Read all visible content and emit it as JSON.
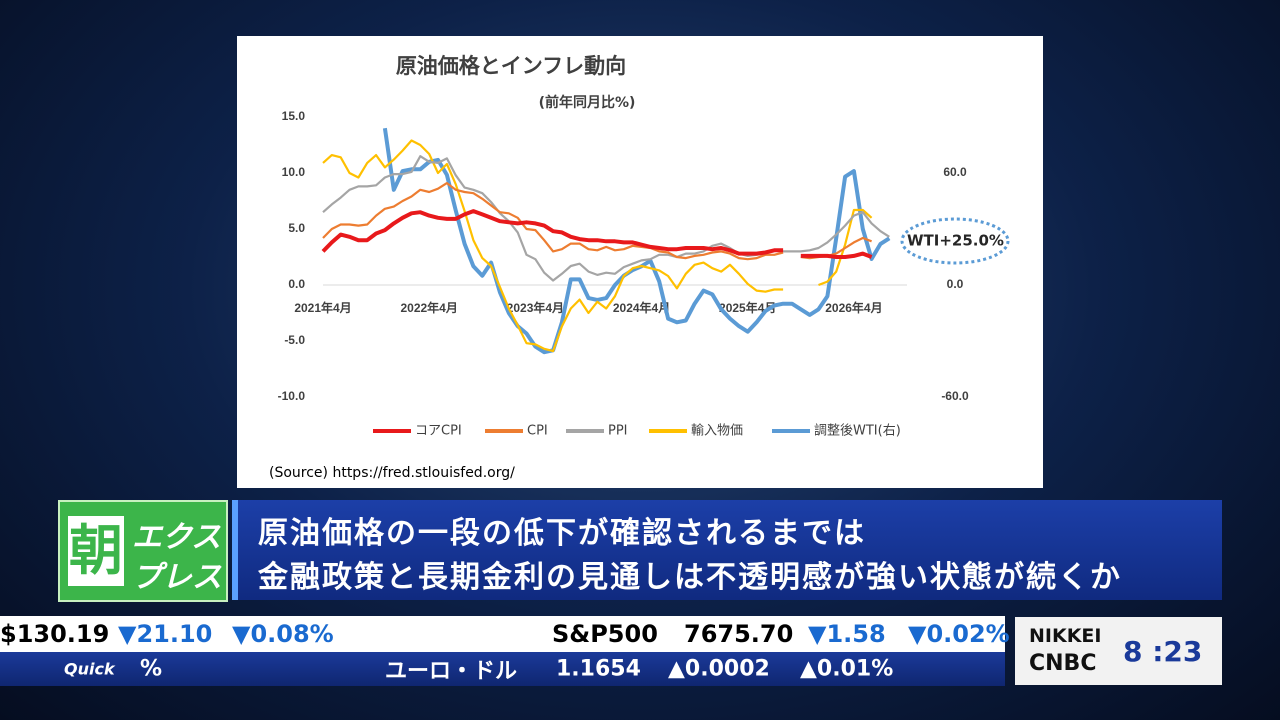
{
  "chart_data": {
    "type": "line",
    "title": "原油価格とインフレ動向",
    "subtitle": "(前年同月比%)",
    "source": "(Source) https://fred.stlouisfed.org/",
    "annotation": "WTI+25.0%",
    "categories": [
      "2021年4月",
      null,
      null,
      null,
      null,
      null,
      null,
      null,
      null,
      null,
      null,
      null,
      "2022年4月",
      null,
      null,
      null,
      null,
      null,
      null,
      null,
      null,
      null,
      null,
      null,
      "2023年4月",
      null,
      null,
      null,
      null,
      null,
      null,
      null,
      null,
      null,
      null,
      null,
      "2024年4月",
      null,
      null,
      null,
      null,
      null,
      null,
      null,
      null,
      null,
      null,
      null,
      "2025年4月",
      null,
      null,
      null,
      null,
      null,
      null,
      null,
      null,
      null,
      null,
      null,
      "2026年4月",
      null,
      null,
      null,
      null,
      null
    ],
    "ylim": [
      -10,
      15
    ],
    "yticks": [
      {
        "value": 15,
        "label": "15.0"
      },
      {
        "value": 10,
        "label": "10.0"
      },
      {
        "value": 5,
        "label": "5.0"
      },
      {
        "value": 0,
        "label": "0.0"
      },
      {
        "value": -5,
        "label": "-5.0"
      },
      {
        "value": -10,
        "label": "-10.0"
      }
    ],
    "y2lim": [
      -60,
      90
    ],
    "y2ticks": [
      {
        "value": 60,
        "label": "60.0"
      },
      {
        "value": 0,
        "label": "0.0"
      },
      {
        "value": -60,
        "label": "-60.0"
      }
    ],
    "grid": false,
    "series": [
      {
        "name": "コアCPI",
        "color": "#e8191b",
        "values": [
          3.0,
          3.8,
          4.5,
          4.3,
          4.0,
          4.0,
          4.6,
          4.9,
          5.5,
          6.0,
          6.4,
          6.5,
          6.2,
          6.0,
          5.9,
          5.9,
          6.3,
          6.6,
          6.3,
          6.0,
          5.7,
          5.6,
          5.5,
          5.6,
          5.5,
          5.3,
          4.8,
          4.7,
          4.3,
          4.1,
          4.0,
          4.0,
          3.9,
          3.9,
          3.8,
          3.8,
          3.6,
          3.4,
          3.3,
          3.2,
          3.2,
          3.3,
          3.3,
          3.3,
          3.2,
          3.3,
          3.1,
          2.8,
          2.8,
          2.8,
          2.9,
          3.1,
          3.1,
          null,
          2.6,
          2.6,
          2.6,
          2.6,
          2.5,
          2.5,
          2.6,
          2.8,
          2.5,
          null,
          null,
          null
        ]
      },
      {
        "name": "CPI",
        "color": "#ed7d31",
        "values": [
          4.2,
          5.0,
          5.4,
          5.4,
          5.3,
          5.4,
          6.2,
          6.8,
          7.0,
          7.5,
          7.9,
          8.5,
          8.3,
          8.6,
          9.1,
          8.5,
          8.3,
          8.2,
          7.7,
          7.1,
          6.5,
          6.4,
          6.0,
          5.0,
          4.9,
          4.0,
          3.0,
          3.2,
          3.7,
          3.7,
          3.2,
          3.1,
          3.4,
          3.1,
          3.2,
          3.5,
          3.4,
          3.3,
          3.0,
          2.9,
          2.5,
          2.4,
          2.6,
          2.7,
          2.9,
          3.0,
          2.8,
          2.4,
          2.3,
          2.4,
          2.7,
          2.7,
          2.9,
          null,
          2.5,
          2.4,
          2.5,
          2.6,
          2.8,
          3.3,
          3.8,
          4.2,
          3.9,
          null,
          null,
          null
        ]
      },
      {
        "name": "PPI",
        "color": "#a5a5a5",
        "values": [
          6.5,
          7.2,
          7.8,
          8.5,
          8.8,
          8.8,
          8.9,
          9.6,
          9.9,
          9.9,
          10.1,
          11.5,
          11.0,
          10.9,
          11.3,
          9.8,
          8.7,
          8.5,
          8.2,
          7.4,
          6.4,
          5.7,
          4.7,
          2.7,
          2.3,
          1.1,
          0.4,
          1.0,
          1.7,
          1.9,
          1.2,
          0.9,
          1.1,
          1.0,
          1.6,
          1.9,
          2.2,
          2.3,
          2.7,
          2.7,
          2.5,
          2.8,
          2.8,
          3.0,
          3.5,
          3.7,
          3.3,
          2.8,
          2.6,
          2.7,
          2.8,
          3.1,
          3.0,
          3.0,
          3.0,
          3.1,
          3.3,
          3.8,
          4.5,
          5.3,
          6.2,
          6.5,
          5.5,
          4.8,
          4.3,
          null
        ]
      },
      {
        "name": "輸入物価",
        "color": "#ffc000",
        "values": [
          10.9,
          11.6,
          11.4,
          10.0,
          9.6,
          10.9,
          11.6,
          10.5,
          11.2,
          12.0,
          12.9,
          12.5,
          11.7,
          10.0,
          10.8,
          9.0,
          6.6,
          4.0,
          2.4,
          1.7,
          -0.2,
          -2.1,
          -3.6,
          -5.2,
          -5.3,
          -5.7,
          -5.9,
          -3.7,
          -2.1,
          -1.3,
          -2.5,
          -1.5,
          -2.1,
          -1.0,
          0.8,
          1.5,
          1.7,
          1.5,
          1.3,
          0.8,
          -0.3,
          1.0,
          1.8,
          2.0,
          1.5,
          1.2,
          1.8,
          1.0,
          0.1,
          -0.5,
          -0.6,
          -0.4,
          -0.4,
          null,
          null,
          null,
          0.0,
          0.3,
          1.2,
          3.6,
          6.7,
          6.7,
          6.0,
          null,
          null,
          null
        ]
      },
      {
        "name": "調整後WTI(右)",
        "color": "#5b9bd5",
        "axis": "y2",
        "values": [
          null,
          null,
          null,
          null,
          null,
          null,
          null,
          84,
          51,
          61,
          62,
          62,
          66,
          67,
          59,
          40,
          22,
          10,
          5,
          12,
          -4,
          -15,
          -22,
          -26,
          -33,
          -36,
          -35,
          -20,
          3,
          3,
          -7,
          -8,
          -7,
          0,
          5,
          8,
          10,
          13,
          2,
          -18,
          -20,
          -19,
          -10,
          -3,
          -5,
          -13,
          -18,
          -22,
          -25,
          -20,
          -14,
          -11,
          -10,
          -10,
          -13,
          -16,
          -13,
          -6,
          25,
          58,
          61,
          30,
          14,
          22,
          25,
          null
        ]
      }
    ]
  },
  "banner": {
    "logo": [
      "朝",
      "エクス",
      "プレス"
    ],
    "lines": [
      "原油価格の一段の低下が確認されるまでは",
      "金融政策と長期金利の見通しは不透明感が強い状態が続くか"
    ]
  },
  "ticker": {
    "row1": [
      "$130.19",
      "▼21.10",
      "▼0.08%",
      "S&P500",
      "7675.70",
      "▼1.58",
      "▼0.02%"
    ],
    "row2": [
      "Quick",
      "%",
      "ユーロ・ドル",
      "1.1654",
      "▲0.0002",
      "▲0.01%"
    ]
  },
  "network": {
    "brand": [
      "NIKKEI",
      "CNBC"
    ],
    "time": "8 :23"
  }
}
